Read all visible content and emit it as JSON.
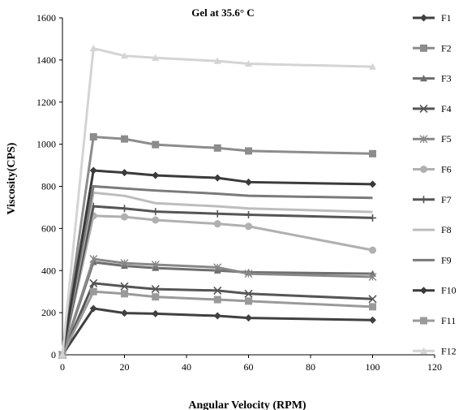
{
  "chart_data": {
    "type": "line",
    "title": "Gel at 35.6° C",
    "xlabel": "Angular Velocity (RPM)",
    "ylabel": "Viscosity(CPS)",
    "xlim": [
      0,
      120
    ],
    "ylim": [
      0,
      1600
    ],
    "xticks": [
      "0",
      "20",
      "40",
      "60",
      "80",
      "100",
      "120"
    ],
    "yticks": [
      "0",
      "200",
      "400",
      "600",
      "800",
      "1000",
      "1200",
      "1400",
      "1600"
    ],
    "grid": false,
    "legend_position": "right",
    "x": [
      0,
      10,
      20,
      30,
      50,
      60,
      100
    ],
    "series": [
      {
        "name": "F1",
        "color": "#404040",
        "marker": "diamond",
        "values": [
          0,
          220,
          198,
          195,
          185,
          175,
          165
        ]
      },
      {
        "name": "F2",
        "color": "#8c8c8c",
        "marker": "square",
        "values": [
          0,
          1035,
          1025,
          998,
          982,
          968,
          955
        ]
      },
      {
        "name": "F3",
        "color": "#6e6e6e",
        "marker": "triangle",
        "values": [
          0,
          440,
          422,
          412,
          400,
          392,
          385
        ]
      },
      {
        "name": "F4",
        "color": "#555555",
        "marker": "x",
        "values": [
          0,
          340,
          325,
          312,
          305,
          290,
          265
        ]
      },
      {
        "name": "F5",
        "color": "#888888",
        "marker": "asterisk",
        "values": [
          0,
          455,
          435,
          428,
          415,
          385,
          370
        ]
      },
      {
        "name": "F6",
        "color": "#b0b0b0",
        "marker": "circle",
        "values": [
          0,
          660,
          655,
          640,
          622,
          610,
          497
        ]
      },
      {
        "name": "F7",
        "color": "#555555",
        "marker": "plus",
        "values": [
          0,
          705,
          695,
          680,
          670,
          665,
          650
        ]
      },
      {
        "name": "F8",
        "color": "#bdbdbd",
        "marker": "none",
        "values": [
          0,
          770,
          755,
          720,
          705,
          695,
          678
        ]
      },
      {
        "name": "F9",
        "color": "#7a7a7a",
        "marker": "none",
        "values": [
          0,
          800,
          790,
          780,
          765,
          755,
          745
        ]
      },
      {
        "name": "F10",
        "color": "#3a3a3a",
        "marker": "diamond",
        "values": [
          0,
          875,
          865,
          852,
          840,
          820,
          810
        ]
      },
      {
        "name": "F11",
        "color": "#9a9a9a",
        "marker": "square",
        "values": [
          0,
          300,
          290,
          275,
          262,
          255,
          228
        ]
      },
      {
        "name": "F12",
        "color": "#d4d4d4",
        "marker": "triangle",
        "values": [
          0,
          1455,
          1420,
          1410,
          1395,
          1382,
          1368
        ]
      }
    ]
  }
}
